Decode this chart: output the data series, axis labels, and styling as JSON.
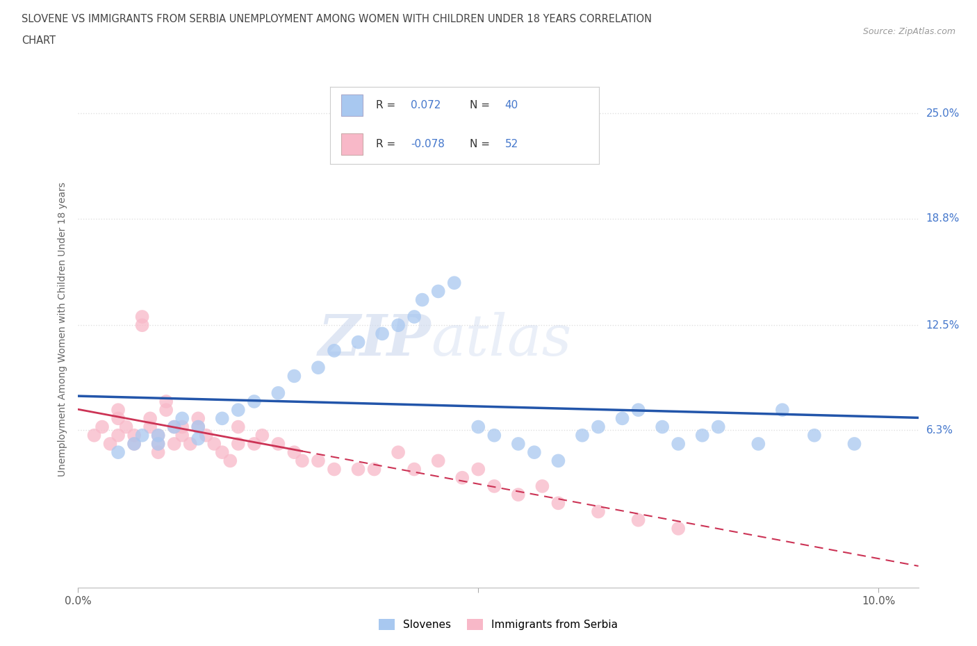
{
  "title_line1": "SLOVENE VS IMMIGRANTS FROM SERBIA UNEMPLOYMENT AMONG WOMEN WITH CHILDREN UNDER 18 YEARS CORRELATION",
  "title_line2": "CHART",
  "source": "Source: ZipAtlas.com",
  "ylabel": "Unemployment Among Women with Children Under 18 years",
  "xlim": [
    0.0,
    0.105
  ],
  "ylim": [
    -0.03,
    0.275
  ],
  "yticks": [
    0.063,
    0.125,
    0.188,
    0.25
  ],
  "ytick_labels": [
    "6.3%",
    "12.5%",
    "18.8%",
    "25.0%"
  ],
  "xtick_positions": [
    0.0,
    0.05,
    0.1
  ],
  "xtick_labels": [
    "0.0%",
    "",
    "10.0%"
  ],
  "slovene_x": [
    0.005,
    0.007,
    0.008,
    0.01,
    0.01,
    0.012,
    0.013,
    0.015,
    0.015,
    0.018,
    0.02,
    0.022,
    0.025,
    0.027,
    0.03,
    0.032,
    0.035,
    0.038,
    0.04,
    0.042,
    0.043,
    0.045,
    0.047,
    0.05,
    0.052,
    0.055,
    0.057,
    0.06,
    0.063,
    0.065,
    0.068,
    0.07,
    0.073,
    0.075,
    0.078,
    0.08,
    0.085,
    0.088,
    0.092,
    0.097
  ],
  "slovene_y": [
    0.05,
    0.055,
    0.06,
    0.055,
    0.06,
    0.065,
    0.07,
    0.058,
    0.065,
    0.07,
    0.075,
    0.08,
    0.085,
    0.095,
    0.1,
    0.11,
    0.115,
    0.12,
    0.125,
    0.13,
    0.14,
    0.145,
    0.15,
    0.065,
    0.06,
    0.055,
    0.05,
    0.045,
    0.06,
    0.065,
    0.07,
    0.075,
    0.065,
    0.055,
    0.06,
    0.065,
    0.055,
    0.075,
    0.06,
    0.055
  ],
  "serbia_x": [
    0.002,
    0.003,
    0.004,
    0.005,
    0.005,
    0.005,
    0.006,
    0.007,
    0.007,
    0.008,
    0.008,
    0.009,
    0.009,
    0.01,
    0.01,
    0.01,
    0.011,
    0.011,
    0.012,
    0.012,
    0.013,
    0.013,
    0.014,
    0.015,
    0.015,
    0.016,
    0.017,
    0.018,
    0.019,
    0.02,
    0.02,
    0.022,
    0.023,
    0.025,
    0.027,
    0.028,
    0.03,
    0.032,
    0.035,
    0.037,
    0.04,
    0.042,
    0.045,
    0.048,
    0.05,
    0.052,
    0.055,
    0.058,
    0.06,
    0.065,
    0.07,
    0.075
  ],
  "serbia_y": [
    0.06,
    0.065,
    0.055,
    0.07,
    0.075,
    0.06,
    0.065,
    0.055,
    0.06,
    0.13,
    0.125,
    0.065,
    0.07,
    0.06,
    0.055,
    0.05,
    0.075,
    0.08,
    0.055,
    0.065,
    0.065,
    0.06,
    0.055,
    0.065,
    0.07,
    0.06,
    0.055,
    0.05,
    0.045,
    0.065,
    0.055,
    0.055,
    0.06,
    0.055,
    0.05,
    0.045,
    0.045,
    0.04,
    0.04,
    0.04,
    0.05,
    0.04,
    0.045,
    0.035,
    0.04,
    0.03,
    0.025,
    0.03,
    0.02,
    0.015,
    0.01,
    0.005
  ],
  "slovene_color": "#a8c8f0",
  "serbia_color": "#f8b8c8",
  "trend_slovene_color": "#2255aa",
  "trend_serbia_color": "#cc3355",
  "R_slovene": 0.072,
  "N_slovene": 40,
  "R_serbia": -0.078,
  "N_serbia": 52,
  "watermark_zip": "ZIP",
  "watermark_atlas": "atlas",
  "background_color": "#ffffff",
  "grid_color": "#e0e0e0",
  "legend_box_color": "#f5f5f5"
}
